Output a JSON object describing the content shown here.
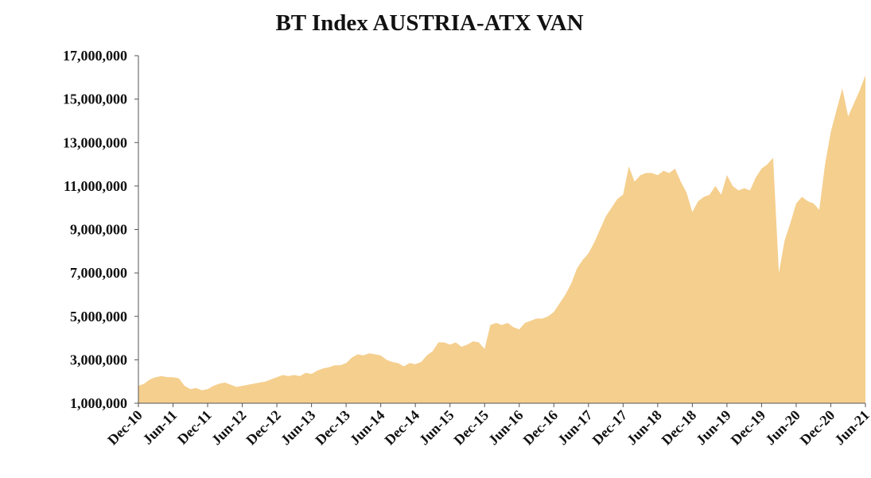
{
  "chart_data": {
    "type": "area",
    "title": "BT Index AUSTRIA-ATX VAN",
    "color": "#f5cf8e",
    "categories": [
      "Dec-10",
      null,
      null,
      null,
      null,
      null,
      "Jun-11",
      null,
      null,
      null,
      null,
      null,
      "Dec-11",
      null,
      null,
      null,
      null,
      null,
      "Jun-12",
      null,
      null,
      null,
      null,
      null,
      "Dec-12",
      null,
      null,
      null,
      null,
      null,
      "Jun-13",
      null,
      null,
      null,
      null,
      null,
      "Dec-13",
      null,
      null,
      null,
      null,
      null,
      "Jun-14",
      null,
      null,
      null,
      null,
      null,
      "Dec-14",
      null,
      null,
      null,
      null,
      null,
      "Jun-15",
      null,
      null,
      null,
      null,
      null,
      "Dec-15",
      null,
      null,
      null,
      null,
      null,
      "Jun-16",
      null,
      null,
      null,
      null,
      null,
      "Dec-16",
      null,
      null,
      null,
      null,
      null,
      "Jun-17",
      null,
      null,
      null,
      null,
      null,
      "Dec-17",
      null,
      null,
      null,
      null,
      null,
      "Jun-18",
      null,
      null,
      null,
      null,
      null,
      "Dec-18",
      null,
      null,
      null,
      null,
      null,
      "Jun-19",
      null,
      null,
      null,
      null,
      null,
      "Dec-19",
      null,
      null,
      null,
      null,
      null,
      "Jun-20",
      null,
      null,
      null,
      null,
      null,
      "Dec-20",
      null,
      null,
      null,
      null,
      null,
      "Jun-21"
    ],
    "values": [
      1800000,
      1900000,
      2100000,
      2200000,
      2250000,
      2200000,
      2200000,
      2150000,
      1800000,
      1650000,
      1700000,
      1600000,
      1650000,
      1800000,
      1900000,
      1950000,
      1850000,
      1750000,
      1800000,
      1850000,
      1900000,
      1950000,
      2000000,
      2100000,
      2200000,
      2300000,
      2250000,
      2300000,
      2250000,
      2400000,
      2350000,
      2500000,
      2600000,
      2650000,
      2750000,
      2750000,
      2850000,
      3100000,
      3250000,
      3200000,
      3300000,
      3250000,
      3200000,
      3000000,
      2900000,
      2850000,
      2700000,
      2850000,
      2800000,
      2900000,
      3200000,
      3400000,
      3800000,
      3800000,
      3700000,
      3800000,
      3600000,
      3700000,
      3850000,
      3800000,
      3500000,
      4600000,
      4700000,
      4600000,
      4700000,
      4500000,
      4400000,
      4700000,
      4800000,
      4900000,
      4900000,
      5000000,
      5200000,
      5600000,
      6000000,
      6500000,
      7200000,
      7600000,
      7900000,
      8400000,
      9000000,
      9600000,
      10000000,
      10400000,
      10600000,
      11900000,
      11200000,
      11500000,
      11600000,
      11600000,
      11500000,
      11700000,
      11600000,
      11800000,
      11200000,
      10700000,
      9800000,
      10300000,
      10500000,
      10600000,
      11000000,
      10600000,
      11500000,
      11000000,
      10800000,
      10900000,
      10800000,
      11400000,
      11800000,
      12000000,
      12300000,
      7000000,
      8500000,
      9300000,
      10200000,
      10500000,
      10300000,
      10200000,
      9900000,
      12000000,
      13500000,
      14500000,
      15500000,
      14200000,
      14800000,
      15400000,
      16100000
    ],
    "ylim": [
      1000000,
      17000000
    ],
    "yticks": [
      {
        "value": 1000000,
        "label": "1,000,000"
      },
      {
        "value": 3000000,
        "label": "3,000,000"
      },
      {
        "value": 5000000,
        "label": "5,000,000"
      },
      {
        "value": 7000000,
        "label": "7,000,000"
      },
      {
        "value": 9000000,
        "label": "9,000,000"
      },
      {
        "value": 11000000,
        "label": "11,000,000"
      },
      {
        "value": 13000000,
        "label": "13,000,000"
      },
      {
        "value": 15000000,
        "label": "15,000,000"
      },
      {
        "value": 17000000,
        "label": "17,000,000"
      }
    ],
    "grid": false
  }
}
